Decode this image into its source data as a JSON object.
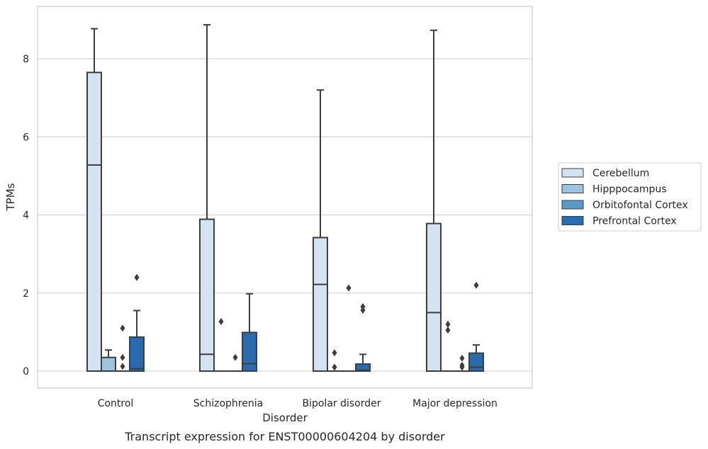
{
  "chart_data": {
    "type": "boxplot",
    "xlabel": "Disorder",
    "ylabel": "TPMs",
    "caption": "Transcript expression for ENST00000604204 by disorder",
    "ylim": [
      -0.42,
      9.3
    ],
    "yticks": [
      0,
      2,
      4,
      6,
      8
    ],
    "grid": "horizontal",
    "legend_position": "right",
    "categories": [
      "Control",
      "Schizophrenia",
      "Bipolar disorder",
      "Major depression"
    ],
    "series": [
      {
        "name": "Cerebellum",
        "color": "#d4e2f1",
        "boxes": [
          {
            "whislo": 0,
            "q1": 0,
            "med": 5.28,
            "q3": 7.65,
            "whishi": 8.77,
            "fliers": []
          },
          {
            "whislo": 0,
            "q1": 0,
            "med": 0.43,
            "q3": 3.89,
            "whishi": 8.87,
            "fliers": []
          },
          {
            "whislo": 0,
            "q1": 0,
            "med": 2.22,
            "q3": 3.42,
            "whishi": 7.2,
            "fliers": []
          },
          {
            "whislo": 0,
            "q1": 0,
            "med": 1.5,
            "q3": 3.78,
            "whishi": 8.73,
            "fliers": []
          }
        ]
      },
      {
        "name": "Hipppocampus",
        "color": "#9dc3de",
        "boxes": [
          {
            "whislo": 0,
            "q1": 0,
            "med": 0,
            "q3": 0.35,
            "whishi": 0.54,
            "fliers": []
          },
          {
            "whislo": 0,
            "q1": 0,
            "med": 0,
            "q3": 0,
            "whishi": 0,
            "fliers": [
              1.27
            ]
          },
          {
            "whislo": 0,
            "q1": 0,
            "med": 0,
            "q3": 0,
            "whishi": 0,
            "fliers": [
              0.47,
              0.1
            ]
          },
          {
            "whislo": 0,
            "q1": 0,
            "med": 0,
            "q3": 0,
            "whishi": 0,
            "fliers": [
              1.2,
              1.05
            ]
          }
        ]
      },
      {
        "name": "Orbitofontal Cortex",
        "color": "#5a98c8",
        "boxes": [
          {
            "whislo": 0,
            "q1": 0,
            "med": 0,
            "q3": 0,
            "whishi": 0,
            "fliers": [
              1.1,
              0.35,
              0.12
            ]
          },
          {
            "whislo": 0,
            "q1": 0,
            "med": 0,
            "q3": 0,
            "whishi": 0,
            "fliers": [
              0.35
            ]
          },
          {
            "whislo": 0,
            "q1": 0,
            "med": 0,
            "q3": 0,
            "whishi": 0,
            "fliers": [
              2.13
            ]
          },
          {
            "whislo": 0,
            "q1": 0,
            "med": 0,
            "q3": 0,
            "whishi": 0,
            "fliers": [
              0.33,
              0.15,
              0.1
            ]
          }
        ]
      },
      {
        "name": "Prefrontal Cortex",
        "color": "#2a6aad",
        "boxes": [
          {
            "whislo": 0,
            "q1": 0,
            "med": 0.06,
            "q3": 0.87,
            "whishi": 1.55,
            "fliers": [
              2.4
            ]
          },
          {
            "whislo": 0,
            "q1": 0,
            "med": 0.19,
            "q3": 0.99,
            "whishi": 1.98,
            "fliers": []
          },
          {
            "whislo": 0,
            "q1": 0,
            "med": 0.02,
            "q3": 0.18,
            "whishi": 0.43,
            "fliers": [
              1.65,
              1.56
            ]
          },
          {
            "whislo": 0,
            "q1": 0,
            "med": 0.1,
            "q3": 0.46,
            "whishi": 0.67,
            "fliers": [
              2.2
            ]
          }
        ]
      }
    ]
  }
}
